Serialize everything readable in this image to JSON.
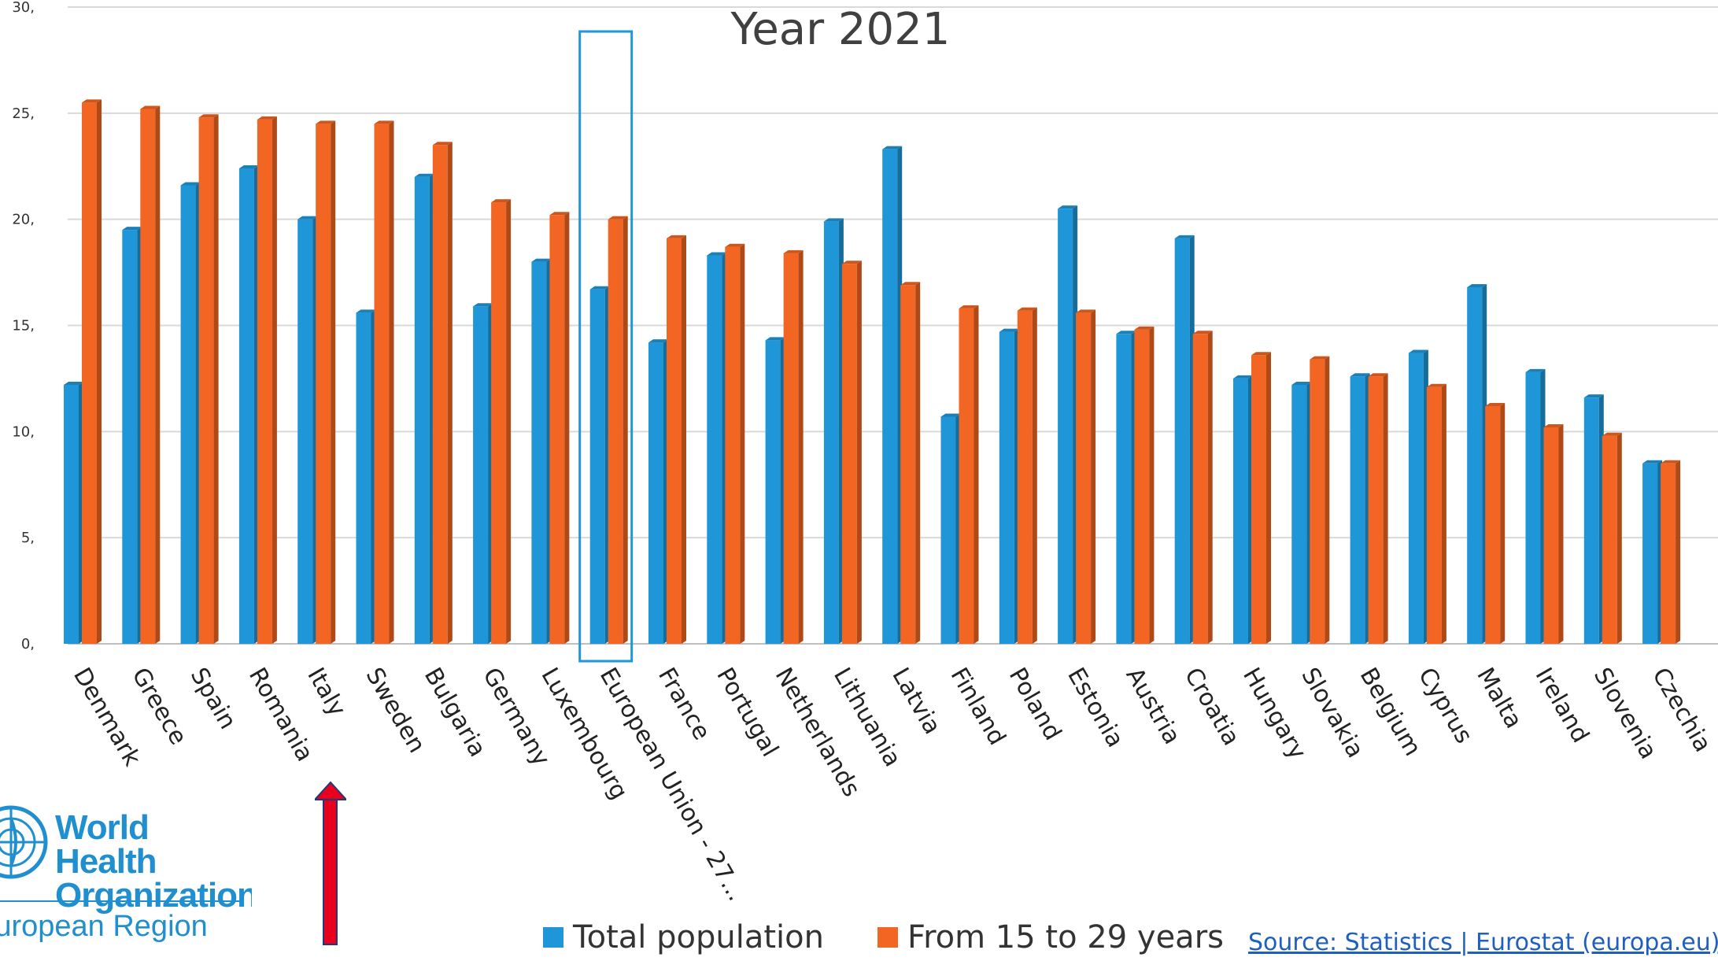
{
  "chart_data": {
    "type": "bar",
    "title": "Year 2021",
    "categories": [
      "Denmark",
      "Greece",
      "Spain",
      "Romania",
      "Italy",
      "Sweden",
      "Bulgaria",
      "Germany",
      "Luxembourg",
      "European Union - 27...",
      "France",
      "Portugal",
      "Netherlands",
      "Lithuania",
      "Latvia",
      "Finland",
      "Poland",
      "Estonia",
      "Austria",
      "Croatia",
      "Hungary",
      "Slovakia",
      "Belgium",
      "Cyprus",
      "Malta",
      "Ireland",
      "Slovenia",
      "Czechia"
    ],
    "series": [
      {
        "name": "Total population",
        "color": "#1f96d7",
        "values": [
          12.2,
          19.5,
          21.6,
          22.4,
          20.0,
          15.6,
          22.0,
          15.9,
          18.0,
          16.7,
          14.2,
          18.3,
          14.3,
          19.9,
          23.3,
          10.7,
          14.7,
          20.5,
          14.6,
          19.1,
          12.5,
          12.2,
          12.6,
          13.7,
          16.8,
          12.8,
          11.6,
          8.5
        ]
      },
      {
        "name": "From 15 to 29 years",
        "color": "#f26522",
        "values": [
          25.5,
          25.2,
          24.8,
          24.7,
          24.5,
          24.5,
          23.5,
          20.8,
          20.2,
          20.0,
          19.1,
          18.7,
          18.4,
          17.9,
          16.9,
          15.8,
          15.7,
          15.6,
          14.8,
          14.6,
          13.6,
          13.4,
          12.6,
          12.1,
          11.2,
          10.2,
          9.8,
          8.5
        ]
      }
    ],
    "y_ticks": [
      "0,",
      "5,",
      "10,",
      "15,",
      "20,",
      "25,",
      "30,"
    ],
    "ylim": [
      0,
      30
    ],
    "grid": true,
    "legend_position": "bottom",
    "highlighted_category": "European Union - 27..."
  },
  "legend": {
    "total_label": "Total population",
    "youth_label": "From 15 to 29 years"
  },
  "source_text": "Source: Statistics | Eurostat (europa.eu)",
  "logo": {
    "name_line1": "World Health",
    "name_line2": "Organization",
    "region": "European Region"
  },
  "colors": {
    "total": "#1f96d7",
    "youth": "#f26522",
    "highlight_box": "#1f96d7",
    "arrow": "#e8001c",
    "who_blue": "#1f8fd0"
  },
  "icons": {
    "logo_emblem": "un-emblem-icon",
    "pointer": "up-arrow-icon"
  }
}
